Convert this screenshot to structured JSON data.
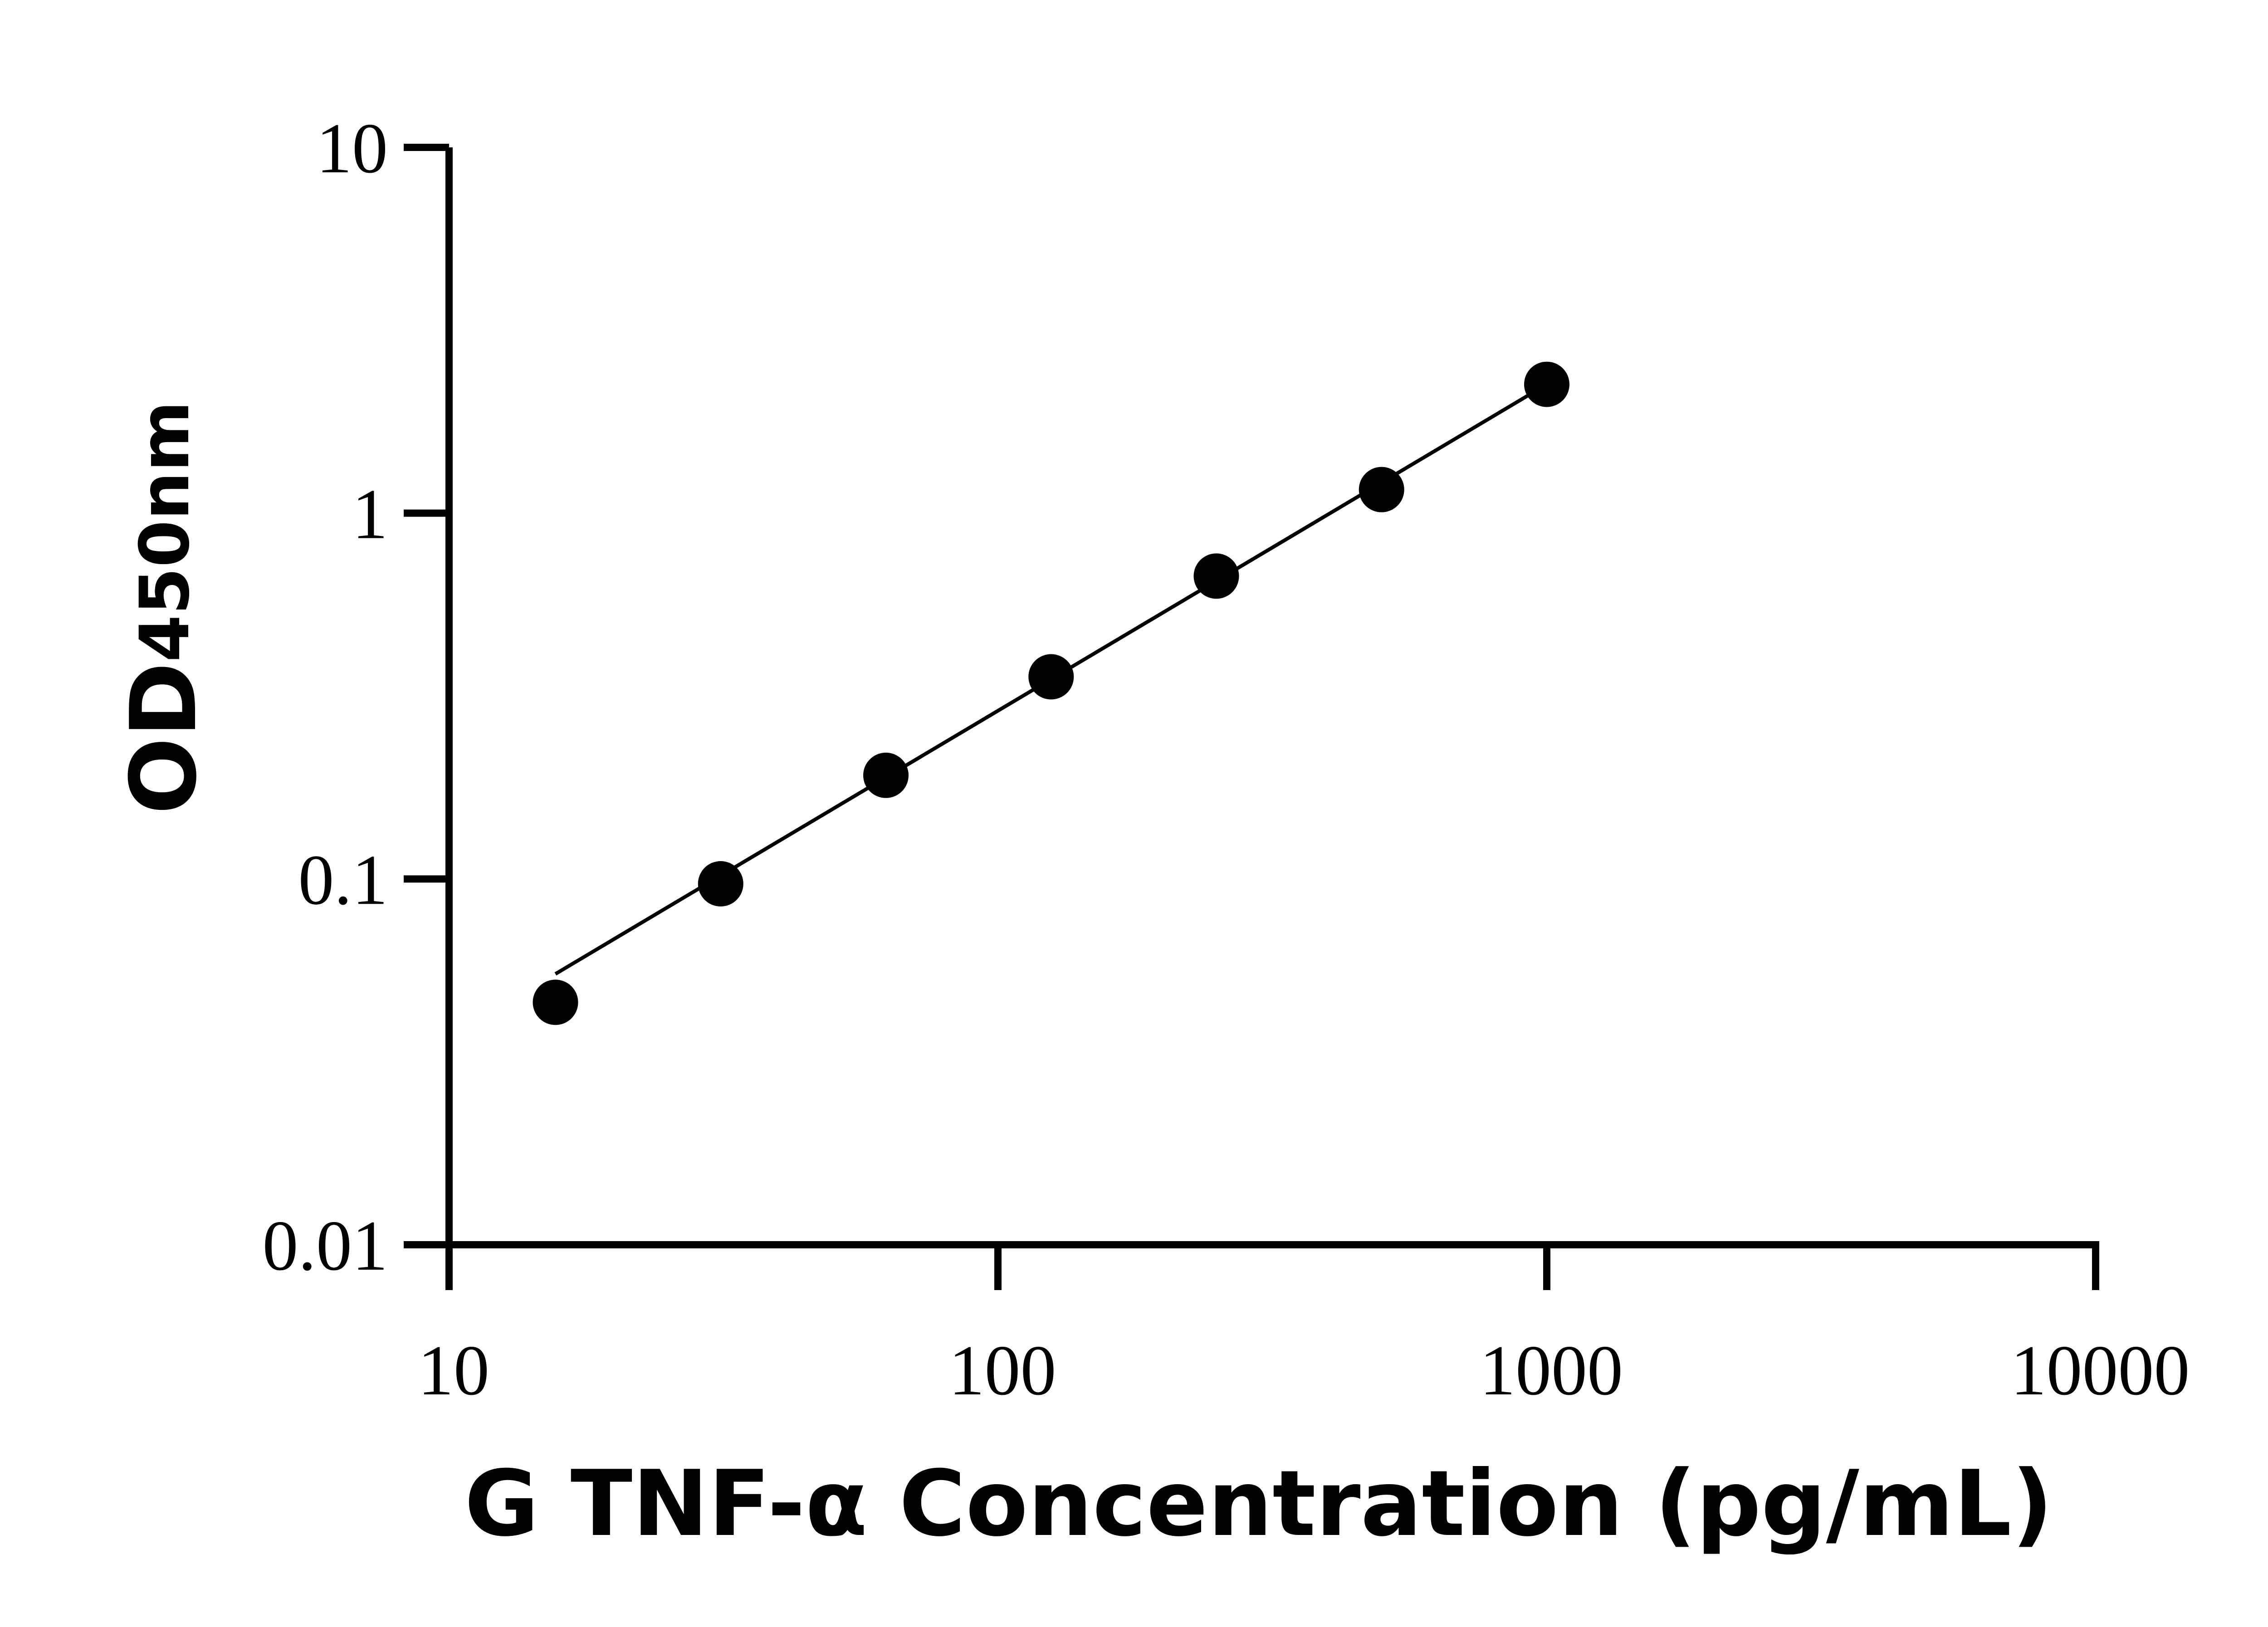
{
  "chart_data": {
    "type": "scatter",
    "x_scale": "log",
    "y_scale": "log",
    "xlim": [
      10,
      10000
    ],
    "ylim": [
      0.01,
      10
    ],
    "x_ticks": [
      10,
      100,
      1000,
      10000
    ],
    "x_tick_labels": [
      "10",
      "100",
      "1000",
      "10000"
    ],
    "y_ticks": [
      0.01,
      0.1,
      1,
      10
    ],
    "y_tick_labels": [
      "0.01",
      "0.1",
      "1",
      "10"
    ],
    "xlabel": "G TNF-α Concentration (pg/mL)",
    "ylabel_main": "OD",
    "ylabel_sub": "450nm",
    "grid": false,
    "legend": "none",
    "series": [
      {
        "points": [
          {
            "x": 15.625,
            "y": 0.046
          },
          {
            "x": 31.25,
            "y": 0.097
          },
          {
            "x": 62.5,
            "y": 0.192
          },
          {
            "x": 125,
            "y": 0.357
          },
          {
            "x": 250,
            "y": 0.673
          },
          {
            "x": 500,
            "y": 1.16
          },
          {
            "x": 1000,
            "y": 2.25
          }
        ],
        "fit_line": [
          {
            "x": 15.625,
            "y": 0.055
          },
          {
            "x": 1000,
            "y": 2.25
          }
        ],
        "color": "#000000"
      }
    ]
  }
}
